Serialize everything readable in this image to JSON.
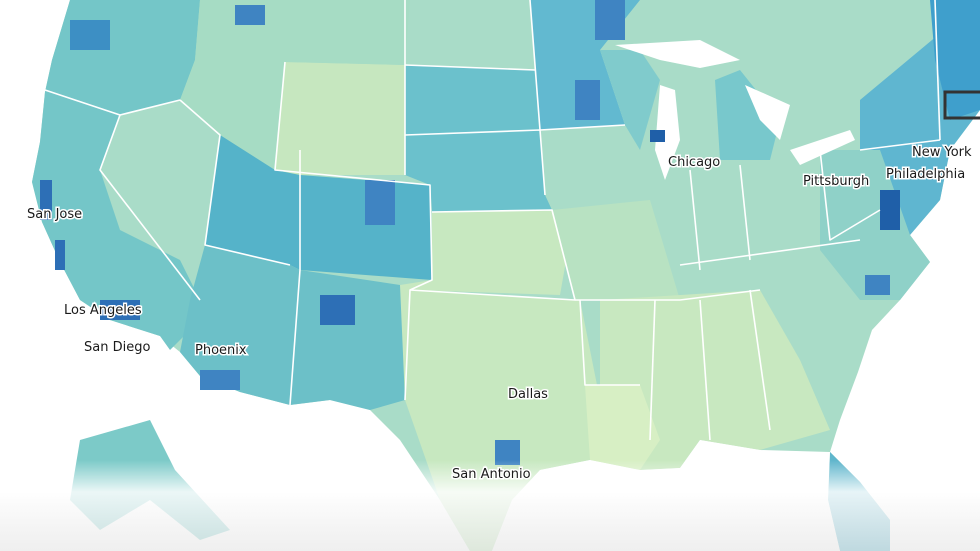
{
  "cities": [
    {
      "label": "San Jose"
    },
    {
      "label": "Los Angeles"
    },
    {
      "label": "San Diego"
    },
    {
      "label": "Phoenix"
    },
    {
      "label": "Dallas"
    },
    {
      "label": "San Antonio"
    },
    {
      "label": "Chicago"
    },
    {
      "label": "Pittsburgh"
    },
    {
      "label": "New York"
    },
    {
      "label": "Philadelphia"
    }
  ]
}
